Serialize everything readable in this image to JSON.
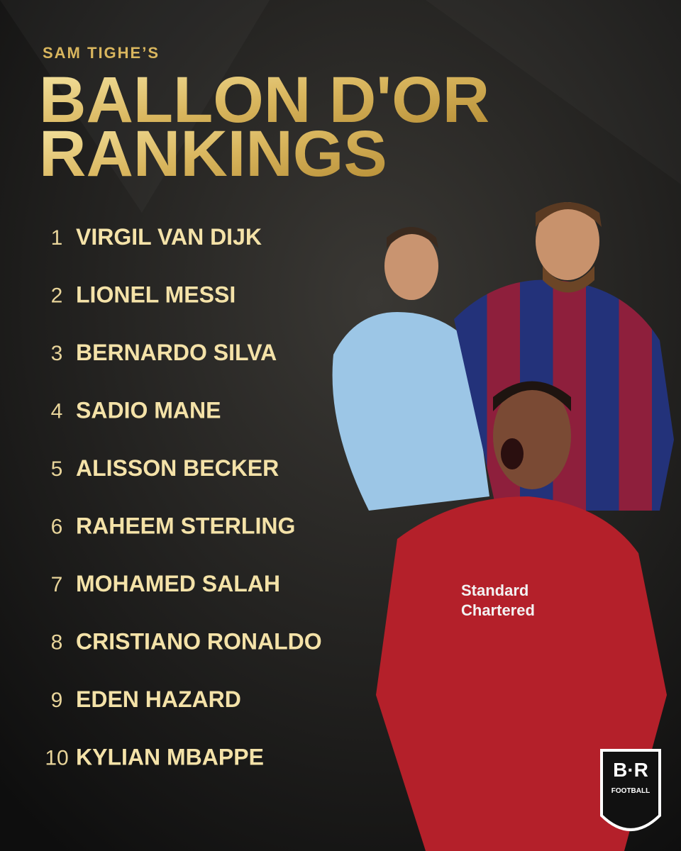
{
  "header": {
    "subtitle": "SAM TIGHE’S",
    "title_lines": [
      "BALLON D'OR",
      "RANKINGS"
    ]
  },
  "rankings": [
    {
      "rank": 1,
      "name": "VIRGIL VAN DIJK"
    },
    {
      "rank": 2,
      "name": "LIONEL MESSI"
    },
    {
      "rank": 3,
      "name": "BERNARDO SILVA"
    },
    {
      "rank": 4,
      "name": "SADIO MANE"
    },
    {
      "rank": 5,
      "name": "ALISSON BECKER"
    },
    {
      "rank": 6,
      "name": "RAHEEM STERLING"
    },
    {
      "rank": 7,
      "name": "MOHAMED SALAH"
    },
    {
      "rank": 8,
      "name": "CRISTIANO RONALDO"
    },
    {
      "rank": 9,
      "name": "EDEN HAZARD"
    },
    {
      "rank": 10,
      "name": "KYLIAN MBAPPE"
    }
  ],
  "logo": {
    "mark": "B·R",
    "label": "FOOTBALL"
  }
}
